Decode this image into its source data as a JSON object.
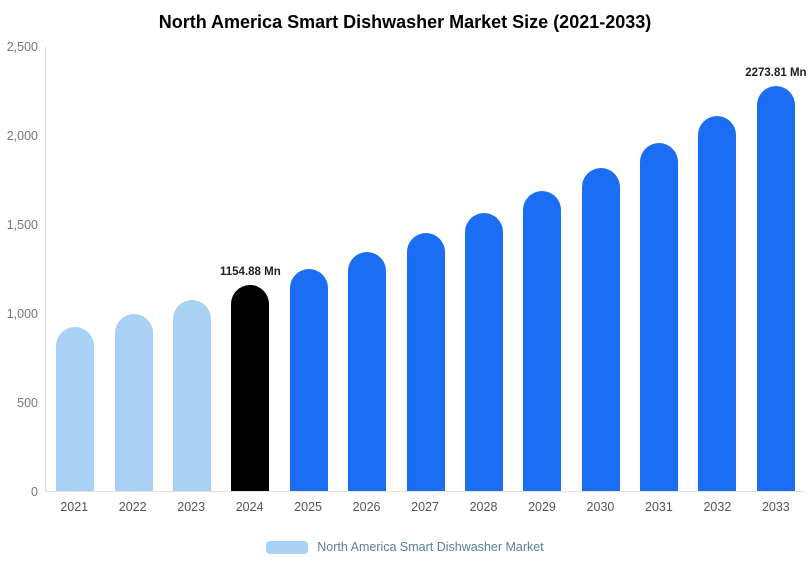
{
  "title": "North America Smart Dishwasher Market Size (2021-2033)",
  "chart_data": {
    "type": "bar",
    "title": "North America Smart Dishwasher Market Size (2021-2033)",
    "xlabel": "",
    "ylabel": "",
    "ylim": [
      0,
      2500
    ],
    "grid": false,
    "legend_position": "bottom",
    "yticks": [
      "0",
      "500",
      "1,000",
      "1,500",
      "2,000",
      "2,500"
    ],
    "categories": [
      "2021",
      "2022",
      "2023",
      "2024",
      "2025",
      "2026",
      "2027",
      "2028",
      "2029",
      "2030",
      "2031",
      "2032",
      "2033"
    ],
    "values": [
      921,
      993,
      1071,
      1154.88,
      1245,
      1343,
      1448,
      1561,
      1683,
      1815,
      1956,
      2109,
      2273.81
    ],
    "colors": {
      "historical": "#A9D0F5",
      "highlight": "#000000",
      "forecast": "#1B6EF3"
    },
    "bars": [
      {
        "year": "2021",
        "value": 921,
        "color_key": "historical",
        "label": ""
      },
      {
        "year": "2022",
        "value": 993,
        "color_key": "historical",
        "label": ""
      },
      {
        "year": "2023",
        "value": 1071,
        "color_key": "historical",
        "label": ""
      },
      {
        "year": "2024",
        "value": 1154.88,
        "color_key": "highlight",
        "label": "1154.88 Mn"
      },
      {
        "year": "2025",
        "value": 1245,
        "color_key": "forecast",
        "label": ""
      },
      {
        "year": "2026",
        "value": 1343,
        "color_key": "forecast",
        "label": ""
      },
      {
        "year": "2027",
        "value": 1448,
        "color_key": "forecast",
        "label": ""
      },
      {
        "year": "2028",
        "value": 1561,
        "color_key": "forecast",
        "label": ""
      },
      {
        "year": "2029",
        "value": 1683,
        "color_key": "forecast",
        "label": ""
      },
      {
        "year": "2030",
        "value": 1815,
        "color_key": "forecast",
        "label": ""
      },
      {
        "year": "2031",
        "value": 1956,
        "color_key": "forecast",
        "label": ""
      },
      {
        "year": "2032",
        "value": 2109,
        "color_key": "forecast",
        "label": ""
      },
      {
        "year": "2033",
        "value": 2273.81,
        "color_key": "forecast",
        "label": "2273.81 Mn"
      }
    ],
    "annotations": [
      "1154.88 Mn",
      "2273.81 Mn"
    ]
  },
  "legend": {
    "label": "North America Smart Dishwasher Market",
    "swatch_color": "#A9D0F5"
  }
}
